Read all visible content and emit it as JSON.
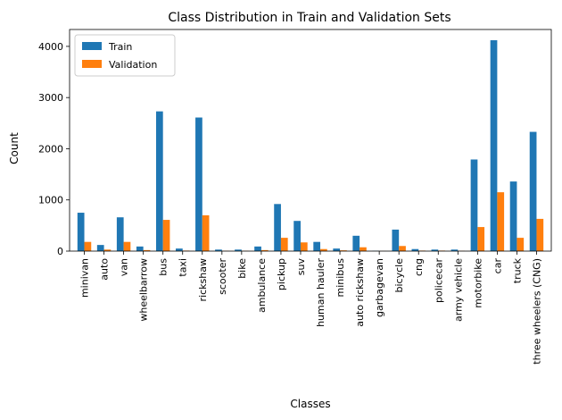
{
  "chart_data": {
    "type": "bar",
    "title": "Class Distribution in Train and Validation Sets",
    "xlabel": "Classes",
    "ylabel": "Count",
    "ylim": [
      0,
      4330
    ],
    "yticks": [
      0,
      1000,
      2000,
      3000,
      4000
    ],
    "grid": false,
    "legend_position": "upper-left",
    "categories": [
      "minivan",
      "auto",
      "van",
      "wheelbarrow",
      "bus",
      "taxi",
      "rickshaw",
      "scooter",
      "bike",
      "ambulance",
      "pickup",
      "suv",
      "human hauler",
      "minibus",
      "auto rickshaw",
      "garbagevan",
      "bicycle",
      "cng",
      "policecar",
      "army vehicle",
      "motorbike",
      "car",
      "truck",
      "three wheelers (CNG)"
    ],
    "series": [
      {
        "name": "Train",
        "color": "#1f77b4",
        "values": [
          750,
          120,
          660,
          90,
          2730,
          50,
          2610,
          30,
          30,
          90,
          920,
          590,
          180,
          50,
          300,
          5,
          420,
          40,
          30,
          30,
          1790,
          4120,
          1360,
          2330
        ]
      },
      {
        "name": "Validation",
        "color": "#ff7f0e",
        "values": [
          180,
          30,
          180,
          20,
          610,
          10,
          700,
          5,
          5,
          20,
          260,
          170,
          40,
          15,
          75,
          2,
          100,
          10,
          10,
          5,
          470,
          1150,
          260,
          630
        ]
      }
    ]
  }
}
